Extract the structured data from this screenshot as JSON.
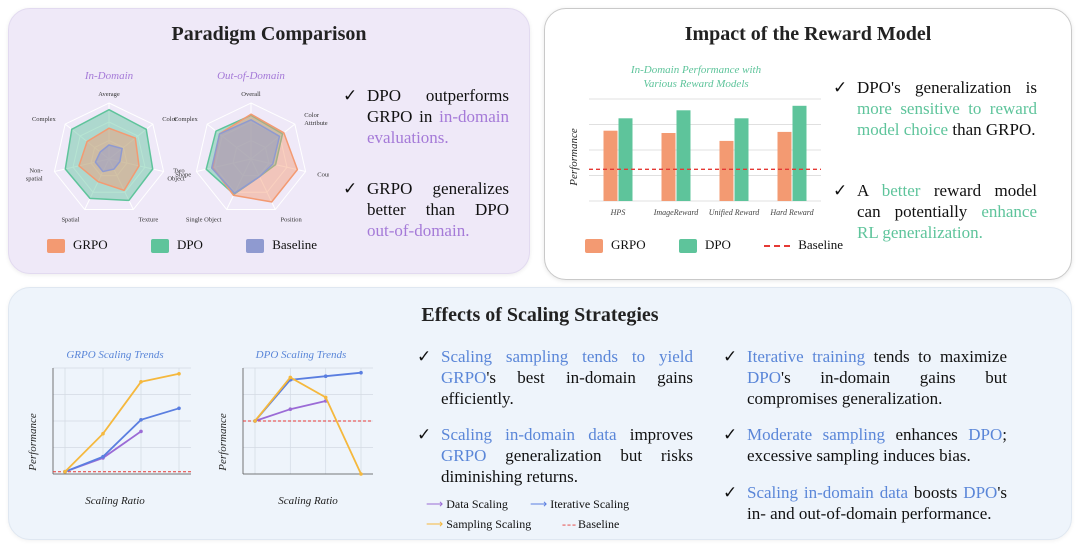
{
  "colors": {
    "grpo": "#f39a72",
    "dpo": "#5ec49b",
    "baseline": "#8f9ad0",
    "purple_text": "#a57ad8",
    "green_text": "#5ec49b",
    "blue_text": "#5a86d8",
    "baseline_line": "#e53935",
    "data_scaling": "#9b6bd6",
    "iterative_scaling": "#5a7ee0",
    "sampling_scaling": "#f5b83d"
  },
  "paradigm": {
    "title": "Paradigm Comparison",
    "in_domain_title": "In-Domain",
    "out_domain_title": "Out-of-Domain",
    "in_axes": [
      "Average",
      "Color",
      "Shape",
      "Texture",
      "Spatial",
      "Non-\nspatial",
      "Complex"
    ],
    "out_axes": [
      "Overall",
      "Color\nAttribute",
      "Counting",
      "Position",
      "Single Object",
      "Two\nObject",
      "Complex"
    ],
    "bullet1": {
      "a": "DPO outperforms GRPO in ",
      "b": "in-domain evaluations."
    },
    "bullet2": {
      "a": "GRPO generalizes better than DPO ",
      "b": "out-of-domain."
    },
    "legend": {
      "grpo": "GRPO",
      "dpo": "DPO",
      "baseline": "Baseline"
    }
  },
  "reward": {
    "title": "Impact of the Reward Model",
    "chart_title_1": "In-Domain Performance with",
    "chart_title_2": "Various Reward Models",
    "ylabel": "Performance",
    "bullet1": {
      "a": "DPO's generalization is ",
      "b": "more sensitive to reward model choice",
      "c": " than GRPO."
    },
    "bullet2": {
      "a": "A ",
      "b": "better",
      "c": " reward model can potentially ",
      "d": "enhance RL generalization."
    },
    "legend": {
      "grpo": "GRPO",
      "dpo": "DPO",
      "baseline": "Baseline"
    }
  },
  "scaling": {
    "title": "Effects of Scaling Strategies",
    "grpo_chart_title": "GRPO Scaling Trends",
    "dpo_chart_title": "DPO Scaling Trends",
    "ylabel": "Performance",
    "xlabel": "Scaling Ratio",
    "legend": {
      "data": "Data Scaling",
      "iterative": "Iterative Scaling",
      "sampling": "Sampling Scaling",
      "baseline": "Baseline"
    },
    "b1": {
      "a": "Scaling sampling tends to yield ",
      "b": "GRPO",
      "c": "'s best in-domain gains efficiently."
    },
    "b2": {
      "a": "Scaling in-domain data",
      "b": " improves ",
      "c": "GRPO",
      "d": " generalization but risks diminishing returns."
    },
    "b3": {
      "a": "Iterative training",
      "b": " tends to maximize ",
      "c": "DPO",
      "d": "'s in-domain gains but compromises generalization."
    },
    "b4": {
      "a": "Moderate sampling",
      "b": " enhances ",
      "c": "DPO",
      "d": "; excessive sampling induces bias."
    },
    "b5": {
      "a": "Scaling in-domain data",
      "b": " boosts ",
      "c": "DPO",
      "d": "'s in- and out-of-domain performance."
    }
  },
  "chart_data": [
    {
      "type": "radar",
      "title": "In-Domain",
      "axes": [
        "Average",
        "Color",
        "Shape",
        "Texture",
        "Spatial",
        "Non-spatial",
        "Complex"
      ],
      "series": [
        {
          "name": "GRPO",
          "values": [
            0.55,
            0.6,
            0.55,
            0.62,
            0.45,
            0.55,
            0.5
          ]
        },
        {
          "name": "DPO",
          "values": [
            0.88,
            0.85,
            0.8,
            0.82,
            0.78,
            0.8,
            0.85
          ]
        },
        {
          "name": "Baseline",
          "values": [
            0.25,
            0.3,
            0.2,
            0.2,
            0.25,
            0.25,
            0.2
          ]
        }
      ]
    },
    {
      "type": "radar",
      "title": "Out-of-Domain",
      "axes": [
        "Overall",
        "Color Attribute",
        "Counting",
        "Position",
        "Single Object",
        "Two Object",
        "Complex"
      ],
      "series": [
        {
          "name": "GRPO",
          "values": [
            0.8,
            0.75,
            0.85,
            0.85,
            0.72,
            0.7,
            0.72
          ]
        },
        {
          "name": "DPO",
          "values": [
            0.78,
            0.72,
            0.45,
            0.35,
            0.7,
            0.82,
            0.8
          ]
        },
        {
          "name": "Baseline",
          "values": [
            0.7,
            0.65,
            0.4,
            0.35,
            0.68,
            0.72,
            0.72
          ]
        }
      ]
    },
    {
      "type": "bar",
      "title": "In-Domain Performance with Various Reward Models",
      "ylabel": "Performance",
      "categories": [
        "HPS",
        "ImageReward",
        "Unified Reward",
        "Hard Reward"
      ],
      "series": [
        {
          "name": "GRPO",
          "values": [
            0.62,
            0.6,
            0.53,
            0.61
          ]
        },
        {
          "name": "DPO",
          "values": [
            0.73,
            0.8,
            0.73,
            0.84
          ]
        }
      ],
      "baseline": 0.28,
      "ylim": [
        0,
        0.9
      ]
    },
    {
      "type": "line",
      "title": "GRPO Scaling Trends",
      "xlabel": "Scaling Ratio",
      "ylabel": "Performance",
      "x": [
        1,
        2,
        3,
        4
      ],
      "series": [
        {
          "name": "Data Scaling",
          "values": [
            0.0,
            0.12,
            0.35,
            null
          ]
        },
        {
          "name": "Iterative Scaling",
          "values": [
            0.0,
            0.13,
            0.45,
            0.55
          ]
        },
        {
          "name": "Sampling Scaling",
          "values": [
            0.0,
            0.33,
            0.78,
            0.85
          ]
        }
      ],
      "baseline": 0.0,
      "ylim": [
        -0.02,
        0.9
      ]
    },
    {
      "type": "line",
      "title": "DPO Scaling Trends",
      "xlabel": "Scaling Ratio",
      "ylabel": "Performance",
      "x": [
        1,
        2,
        3,
        4
      ],
      "series": [
        {
          "name": "Data Scaling",
          "values": [
            0.45,
            0.55,
            0.62,
            null
          ]
        },
        {
          "name": "Iterative Scaling",
          "values": [
            0.45,
            0.8,
            0.83,
            0.86
          ]
        },
        {
          "name": "Sampling Scaling",
          "values": [
            0.45,
            0.82,
            0.65,
            0.0
          ]
        }
      ],
      "baseline": 0.45,
      "ylim": [
        0,
        0.9
      ]
    }
  ]
}
